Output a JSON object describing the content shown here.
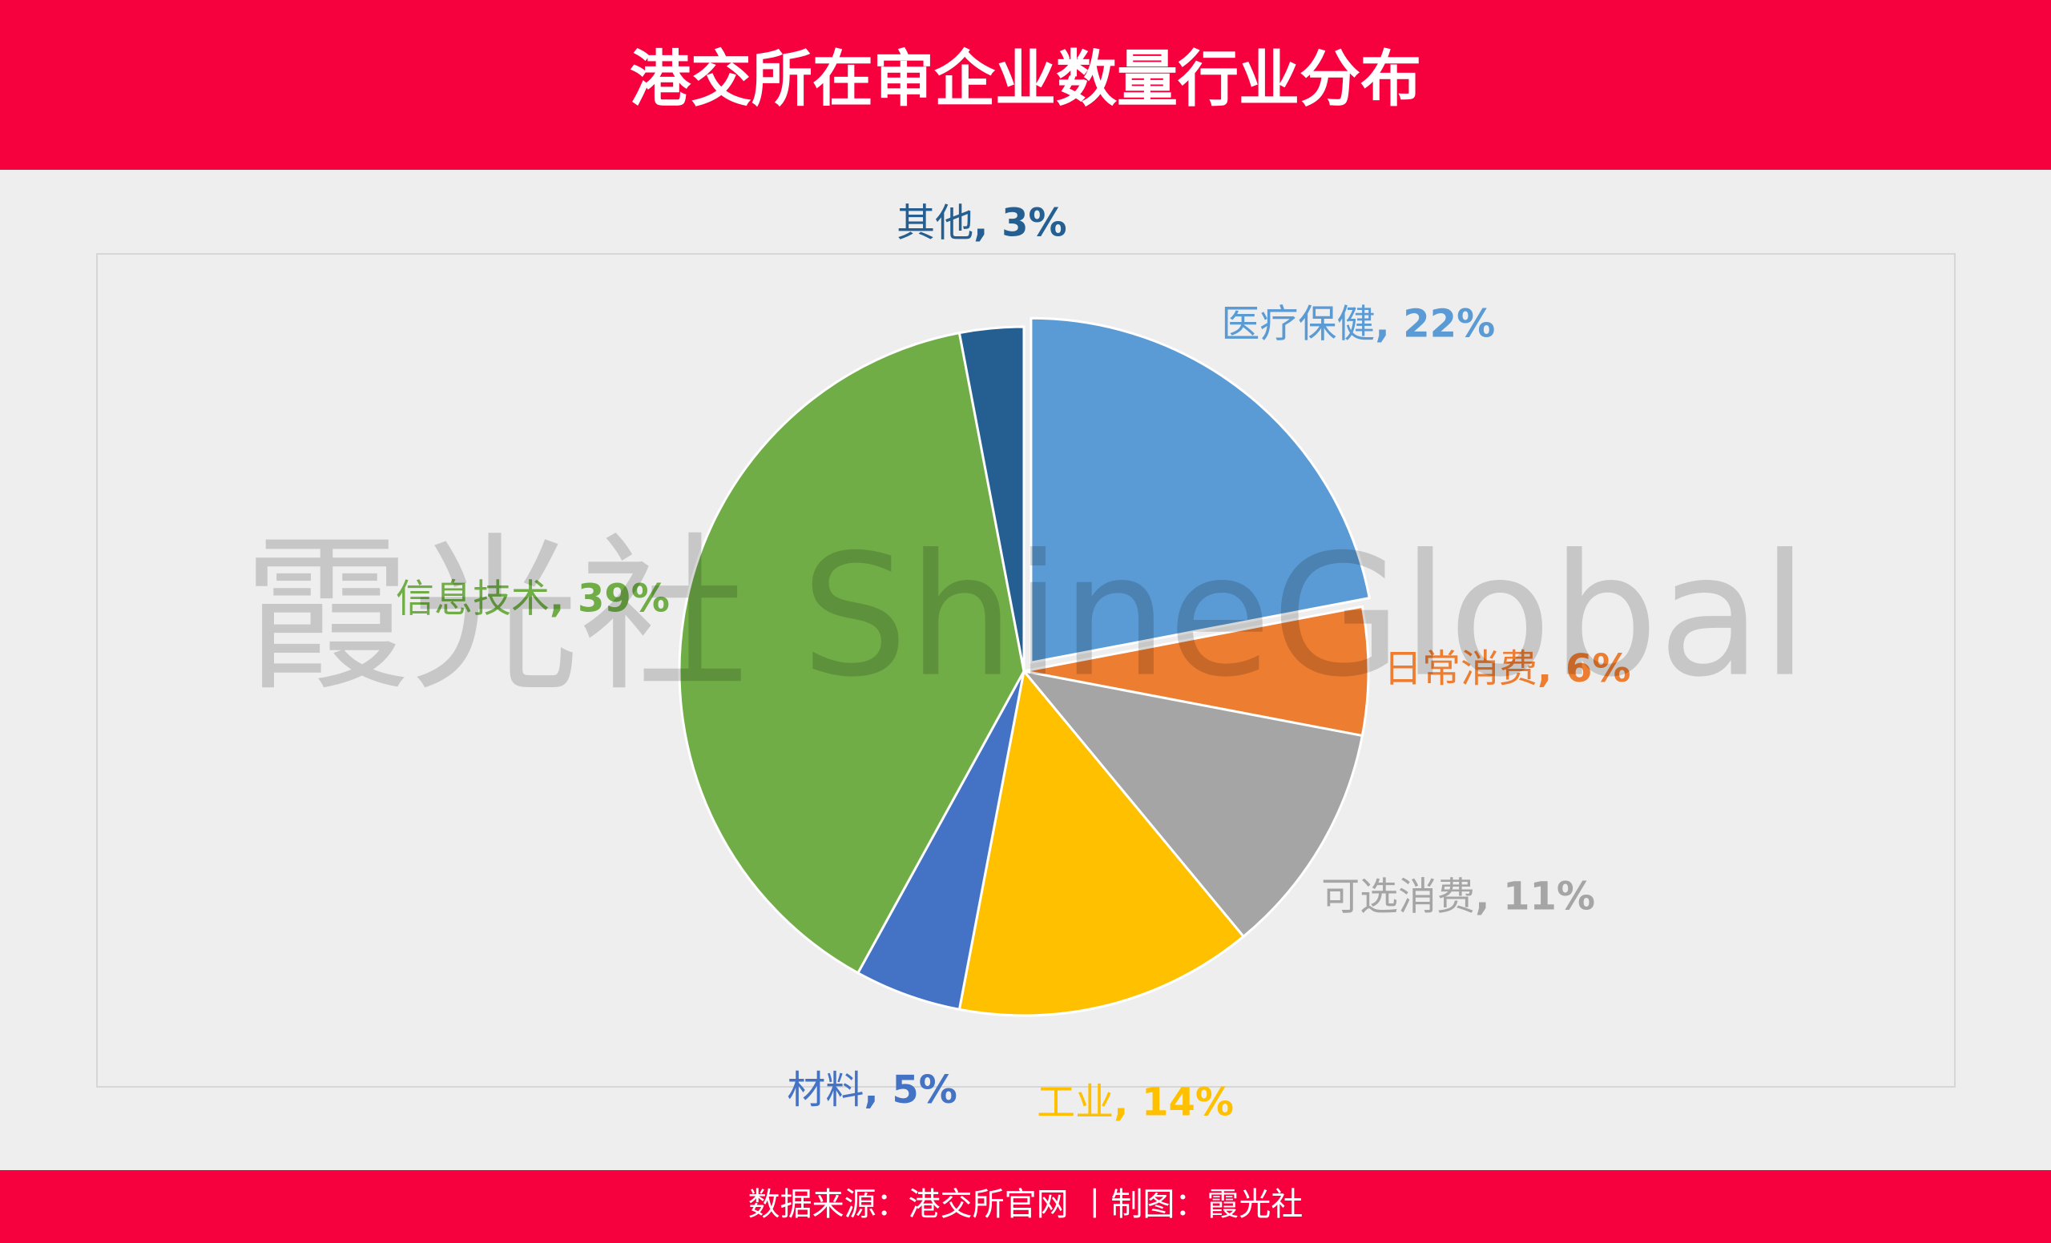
{
  "chart_data": {
    "type": "pie",
    "title": "港交所在审企业数量行业分布",
    "categories": [
      "医疗保健",
      "日常消费",
      "可选消费",
      "工业",
      "材料",
      "信息技术",
      "其他"
    ],
    "values": [
      22,
      6,
      11,
      14,
      5,
      39,
      3
    ],
    "value_labels": [
      "22%",
      "6%",
      "11%",
      "14%",
      "5%",
      "39%",
      "3%"
    ],
    "label_separator": ", ",
    "colors": [
      "#5b9bd5",
      "#ed7d31",
      "#a5a5a5",
      "#ffc000",
      "#4472c4",
      "#70ad47",
      "#255e91"
    ],
    "exploded": [
      0
    ],
    "watermark": "霞光社 ShineGlobal",
    "source": "数据来源：港交所官网 丨制图：霞光社"
  }
}
